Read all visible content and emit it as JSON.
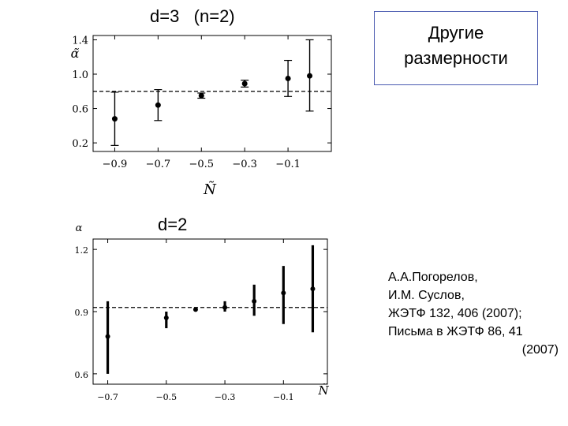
{
  "slide": {
    "title_top": "d=3   (n=2)",
    "title_bottom": "d=2",
    "box_lines": [
      "Другие",
      "размерности"
    ],
    "reference_lines": [
      "А.А.Погорелов,",
      "И.М. Суслов,",
      "ЖЭТФ 132, 406 (2007);",
      "Письма в ЖЭТФ 86, 41",
      "(2007)"
    ],
    "box_border_color": "#4a5ab0"
  },
  "chart_data": [
    {
      "type": "scatter",
      "title": "d=3   (n=2)",
      "xlabel": "Ñ",
      "ylabel": "α̃",
      "xlim": [
        -1.0,
        0.1
      ],
      "ylim": [
        0.1,
        1.45
      ],
      "xticks": [
        -0.9,
        -0.7,
        -0.5,
        -0.3,
        -0.1
      ],
      "xtick_labels": [
        "−0.9",
        "−0.7",
        "−0.5",
        "−0.3",
        "−0.1"
      ],
      "yticks": [
        0.2,
        0.6,
        1.0,
        1.4
      ],
      "ytick_labels": [
        "0.2",
        "0.6",
        "1.0",
        "1.4"
      ],
      "reference_line": 0.8,
      "grid": false,
      "series": [
        {
          "x": [
            -0.9,
            -0.7,
            -0.5,
            -0.3,
            -0.1,
            0.0
          ],
          "y": [
            0.48,
            0.64,
            0.75,
            0.89,
            0.95,
            0.98
          ],
          "y_low": [
            0.17,
            0.46,
            0.72,
            0.85,
            0.74,
            0.57
          ],
          "y_high": [
            0.79,
            0.82,
            0.78,
            0.93,
            1.16,
            1.4
          ]
        }
      ]
    },
    {
      "type": "scatter",
      "title": "d=2",
      "xlabel": "Ñ",
      "ylabel": "α",
      "xlim": [
        -0.75,
        0.05
      ],
      "ylim": [
        0.55,
        1.25
      ],
      "xticks": [
        -0.7,
        -0.5,
        -0.3,
        -0.1
      ],
      "xtick_labels": [
        "−0.7",
        "−0.5",
        "−0.3",
        "−0.1"
      ],
      "yticks": [
        0.6,
        0.9,
        1.2
      ],
      "ytick_labels": [
        "0.6",
        "0.9",
        "1.2"
      ],
      "reference_line": 0.92,
      "grid": false,
      "series": [
        {
          "x": [
            -0.7,
            -0.5,
            -0.4,
            -0.3,
            -0.2,
            -0.1,
            0.0
          ],
          "y": [
            0.78,
            0.87,
            0.91,
            0.92,
            0.95,
            0.99,
            1.01
          ],
          "y_low": [
            0.6,
            0.82,
            0.91,
            0.9,
            0.88,
            0.84,
            0.8
          ],
          "y_high": [
            0.95,
            0.9,
            0.91,
            0.95,
            1.03,
            1.12,
            1.22
          ]
        }
      ]
    }
  ]
}
